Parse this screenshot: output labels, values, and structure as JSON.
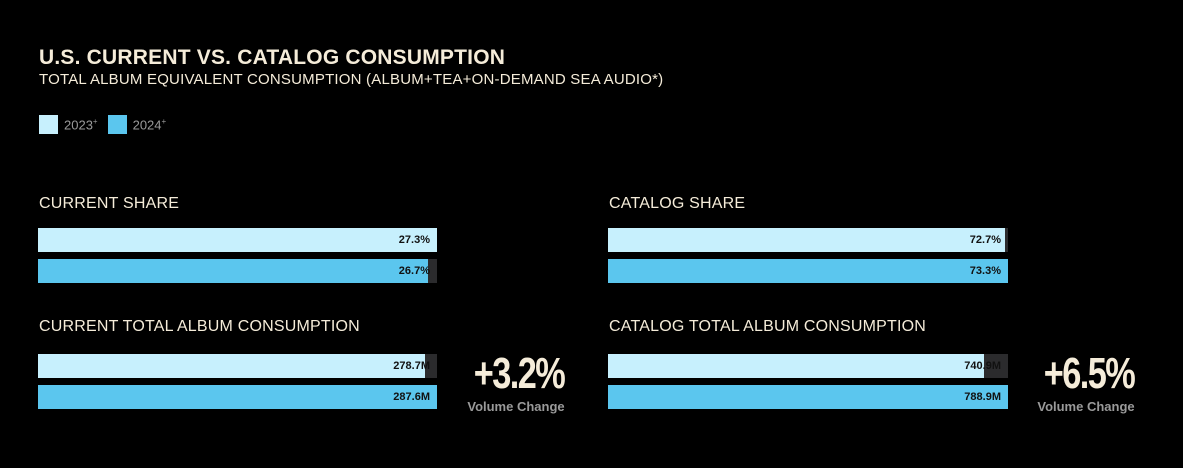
{
  "title": "U.S. CURRENT VS. CATALOG CONSUMPTION",
  "subtitle": "TOTAL ALBUM EQUIVALENT CONSUMPTION (ALBUM+TEA+ON-DEMAND SEA AUDIO*)",
  "legend": [
    {
      "label": "2023",
      "marker": "+",
      "color": "#c7f0fd"
    },
    {
      "label": "2024",
      "marker": "+",
      "color": "#5bc6ee"
    }
  ],
  "colors": {
    "track": "#2b2b2d",
    "background": "#000000",
    "text": "#f5ecd9"
  },
  "chart_data": [
    {
      "type": "bar",
      "title": "CURRENT SHARE",
      "unit": "%",
      "max": 100,
      "series": [
        {
          "name": "2023",
          "value": 27.3,
          "label": "27.3%"
        },
        {
          "name": "2024",
          "value": 26.7,
          "label": "26.7%"
        }
      ]
    },
    {
      "type": "bar",
      "title": "CATALOG SHARE",
      "unit": "%",
      "max": 100,
      "series": [
        {
          "name": "2023",
          "value": 72.7,
          "label": "72.7%"
        },
        {
          "name": "2024",
          "value": 73.3,
          "label": "73.3%"
        }
      ]
    },
    {
      "type": "bar",
      "title": "CURRENT TOTAL ALBUM CONSUMPTION",
      "unit": "M",
      "series": [
        {
          "name": "2023",
          "value": 278.7,
          "label": "278.7M"
        },
        {
          "name": "2024",
          "value": 287.6,
          "label": "287.6M"
        }
      ],
      "volume_change": "+3.2%",
      "volume_change_label": "Volume Change"
    },
    {
      "type": "bar",
      "title": "CATALOG TOTAL ALBUM CONSUMPTION",
      "unit": "M",
      "series": [
        {
          "name": "2023",
          "value": 740.9,
          "label": "740.9M"
        },
        {
          "name": "2024",
          "value": 788.9,
          "label": "788.9M"
        }
      ],
      "volume_change": "+6.5%",
      "volume_change_label": "Volume Change"
    }
  ]
}
